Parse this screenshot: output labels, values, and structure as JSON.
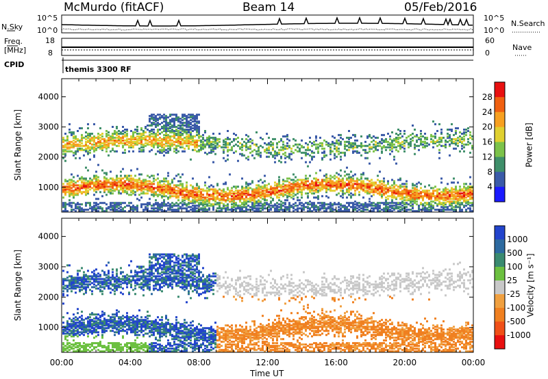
{
  "header": {
    "station": "McMurdo (fitACF)",
    "beam": "Beam 14",
    "date": "05/Feb/2016"
  },
  "top_panels": {
    "nsky_label": "N.Sky",
    "nsky_tick_top": "10^5",
    "nsky_tick_bottom": "10^0",
    "nsky_right_tick_top": "10^5",
    "nsky_right_tick_bottom": "10^0",
    "nsearch_label": "N.Search",
    "freq_label": "Freq.",
    "freq_unit": "[MHz]",
    "freq_tick_top": "18",
    "freq_tick_bottom": "8",
    "nave_tick_top": "60",
    "nave_tick_bottom": "0",
    "nave_label": "Nave",
    "cpid_label": "CPID",
    "cpid_value": "themis 3300 RF"
  },
  "chart_data": [
    {
      "type": "heatmap",
      "name": "power",
      "ylabel": "Slant Range [km]",
      "yticks": [
        "1000",
        "2000",
        "3000",
        "4000"
      ],
      "ylim": [
        180,
        4600
      ],
      "colorbar_label": "Power [dB]",
      "colorbar_ticks": [
        "4",
        "8",
        "12",
        "16",
        "20",
        "24",
        "28"
      ],
      "colorbar_colors": [
        "#1a1aff",
        "#3a5aa8",
        "#3f8f6a",
        "#7cc24a",
        "#e0d030",
        "#f7a020",
        "#f06010",
        "#e81010"
      ],
      "xticks": [
        "00:00",
        "04:00",
        "08:00",
        "12:00",
        "16:00",
        "20:00",
        "00:00"
      ],
      "xlim_hours": [
        0,
        24
      ]
    },
    {
      "type": "heatmap",
      "name": "velocity",
      "ylabel": "Slant Range [km]",
      "yticks": [
        "1000",
        "2000",
        "3000",
        "4000"
      ],
      "ylim": [
        180,
        4600
      ],
      "colorbar_label": "Velocity [m s⁻¹]",
      "colorbar_ticks": [
        "1000",
        "500",
        "100",
        "25",
        "-25",
        "-100",
        "-500",
        "-1000"
      ],
      "colorbar_colors": [
        "#2244cc",
        "#2d6aa0",
        "#3a8a70",
        "#6cc040",
        "#c8c8c8",
        "#f0a040",
        "#f08020",
        "#f05018",
        "#e81010"
      ],
      "xticks": [
        "00:00",
        "04:00",
        "08:00",
        "12:00",
        "16:00",
        "20:00",
        "00:00"
      ],
      "xlabel": "Time UT",
      "xlim_hours": [
        0,
        24
      ]
    }
  ]
}
